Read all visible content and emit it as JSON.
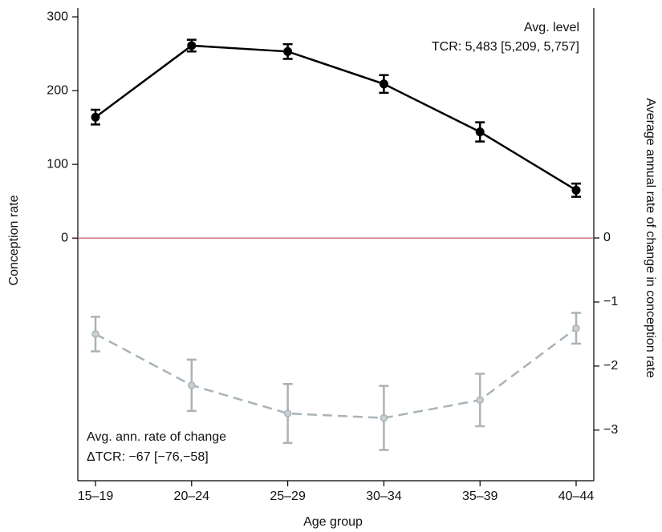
{
  "chart_data": {
    "type": "line",
    "xlabel": "Age group",
    "ylabel": "Conception rate",
    "y2label": "Average annual rate of change in conception rate",
    "categories": [
      "15–19",
      "20–24",
      "25–29",
      "30–34",
      "35–39",
      "40–44"
    ],
    "ylim": [
      -329,
      312
    ],
    "yticks": [
      0,
      100,
      200,
      300
    ],
    "y2lim": [
      -3.79,
      3.59
    ],
    "y2ticks": [
      {
        "value": 0,
        "label": "0"
      },
      {
        "value": -1,
        "label": "−1"
      },
      {
        "value": -2,
        "label": "−2"
      },
      {
        "value": -3,
        "label": "−3"
      }
    ],
    "series": [
      {
        "color": "#000000",
        "linestyle": "solid",
        "values": [
          164,
          261,
          253,
          209,
          144,
          65
        ],
        "errors": [
          10,
          8,
          10,
          12,
          13,
          9
        ]
      },
      {
        "color": "#a9b3b8",
        "linestyle": "dashed",
        "axis": "y2",
        "values": [
          -1.5,
          -2.3,
          -2.74,
          -2.81,
          -2.53,
          -1.41
        ],
        "errors": [
          0.27,
          0.4,
          0.46,
          0.5,
          0.41,
          0.24
        ]
      }
    ],
    "zero_line_color": "#c0505a",
    "annotations": [
      "Avg. level",
      "TCR: 5,483 [5,209, 5,757]",
      "Avg. ann. rate of change",
      "ΔTCR: −67 [−76,−58]"
    ]
  }
}
